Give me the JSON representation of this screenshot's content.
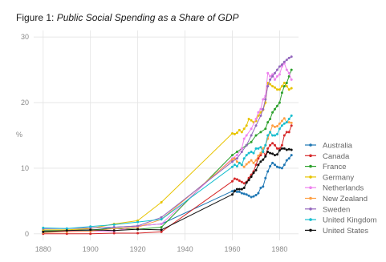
{
  "chart_data": {
    "type": "line",
    "title_prefix": "Figure 1:",
    "title_main": "Public Social Spending as a Share of GDP",
    "xlabel": "",
    "ylabel": "%",
    "xlim": [
      1876,
      1988
    ],
    "ylim": [
      -1,
      31
    ],
    "x_ticks": [
      1880,
      1900,
      1920,
      1940,
      1960,
      1980
    ],
    "y_ticks": [
      0,
      10,
      20,
      30
    ],
    "grid": true,
    "legend_position": "right",
    "series": [
      {
        "name": "Australia",
        "color": "#1f77b4",
        "points": [
          [
            1880,
            0.5
          ],
          [
            1890,
            0.5
          ],
          [
            1900,
            0.5
          ],
          [
            1910,
            1.0
          ],
          [
            1920,
            1.2
          ],
          [
            1930,
            1.5
          ],
          [
            1960,
            6.5
          ],
          [
            1961,
            6.6
          ],
          [
            1962,
            6.4
          ],
          [
            1963,
            6.4
          ],
          [
            1964,
            6.2
          ],
          [
            1965,
            6.1
          ],
          [
            1966,
            6.0
          ],
          [
            1967,
            5.8
          ],
          [
            1968,
            5.6
          ],
          [
            1969,
            5.7
          ],
          [
            1970,
            5.9
          ],
          [
            1971,
            6.2
          ],
          [
            1972,
            7.0
          ],
          [
            1973,
            7.2
          ],
          [
            1974,
            8.5
          ],
          [
            1975,
            9.5
          ],
          [
            1976,
            10.3
          ],
          [
            1977,
            10.8
          ],
          [
            1978,
            10.5
          ],
          [
            1979,
            10.2
          ],
          [
            1980,
            10.1
          ],
          [
            1981,
            10.0
          ],
          [
            1982,
            10.5
          ],
          [
            1983,
            11.2
          ],
          [
            1984,
            11.5
          ],
          [
            1985,
            12.0
          ]
        ]
      },
      {
        "name": "Canada",
        "color": "#d62728",
        "points": [
          [
            1880,
            0.0
          ],
          [
            1890,
            0.0
          ],
          [
            1900,
            0.0
          ],
          [
            1910,
            0.1
          ],
          [
            1920,
            0.1
          ],
          [
            1930,
            0.3
          ],
          [
            1960,
            8.0
          ],
          [
            1961,
            8.4
          ],
          [
            1962,
            8.3
          ],
          [
            1963,
            8.1
          ],
          [
            1964,
            7.9
          ],
          [
            1965,
            7.7
          ],
          [
            1966,
            7.9
          ],
          [
            1967,
            8.5
          ],
          [
            1968,
            9.0
          ],
          [
            1969,
            9.5
          ],
          [
            1970,
            10.5
          ],
          [
            1971,
            11.5
          ],
          [
            1972,
            12.0
          ],
          [
            1973,
            12.5
          ],
          [
            1974,
            12.0
          ],
          [
            1975,
            13.0
          ],
          [
            1976,
            13.5
          ],
          [
            1977,
            13.8
          ],
          [
            1978,
            13.5
          ],
          [
            1979,
            13.0
          ],
          [
            1980,
            13.0
          ],
          [
            1981,
            13.5
          ],
          [
            1982,
            15.0
          ],
          [
            1983,
            15.5
          ],
          [
            1984,
            15.5
          ],
          [
            1985,
            16.5
          ]
        ]
      },
      {
        "name": "France",
        "color": "#2ca02c",
        "points": [
          [
            1880,
            0.4
          ],
          [
            1890,
            0.5
          ],
          [
            1900,
            0.6
          ],
          [
            1910,
            0.8
          ],
          [
            1920,
            0.7
          ],
          [
            1930,
            1.0
          ],
          [
            1960,
            12.0
          ],
          [
            1962,
            12.5
          ],
          [
            1964,
            13.0
          ],
          [
            1966,
            13.5
          ],
          [
            1968,
            14.0
          ],
          [
            1970,
            15.0
          ],
          [
            1972,
            15.5
          ],
          [
            1974,
            16.0
          ],
          [
            1975,
            17.0
          ],
          [
            1976,
            17.5
          ],
          [
            1977,
            18.5
          ],
          [
            1978,
            19.0
          ],
          [
            1979,
            19.5
          ],
          [
            1980,
            20.0
          ],
          [
            1981,
            21.5
          ],
          [
            1982,
            22.5
          ],
          [
            1983,
            23.0
          ],
          [
            1984,
            24.0
          ],
          [
            1985,
            25.0
          ]
        ]
      },
      {
        "name": "Germany",
        "color": "#e8c400",
        "points": [
          [
            1880,
            0.6
          ],
          [
            1890,
            0.6
          ],
          [
            1900,
            0.8
          ],
          [
            1910,
            1.5
          ],
          [
            1920,
            2.0
          ],
          [
            1930,
            4.8
          ],
          [
            1960,
            15.3
          ],
          [
            1961,
            15.2
          ],
          [
            1962,
            15.4
          ],
          [
            1963,
            15.8
          ],
          [
            1964,
            15.5
          ],
          [
            1965,
            16.0
          ],
          [
            1966,
            16.5
          ],
          [
            1967,
            17.5
          ],
          [
            1968,
            17.3
          ],
          [
            1969,
            17.0
          ],
          [
            1970,
            17.2
          ],
          [
            1971,
            18.0
          ],
          [
            1972,
            18.5
          ],
          [
            1973,
            18.9
          ],
          [
            1974,
            20.0
          ],
          [
            1975,
            23.0
          ],
          [
            1976,
            22.8
          ],
          [
            1977,
            22.5
          ],
          [
            1978,
            22.3
          ],
          [
            1979,
            22.0
          ],
          [
            1980,
            22.0
          ],
          [
            1981,
            22.5
          ],
          [
            1982,
            23.0
          ],
          [
            1983,
            22.5
          ],
          [
            1984,
            22.0
          ],
          [
            1985,
            22.2
          ]
        ]
      },
      {
        "name": "Netherlands",
        "color": "#ee82ee",
        "points": [
          [
            1880,
            0.3
          ],
          [
            1890,
            0.4
          ],
          [
            1900,
            0.4
          ],
          [
            1910,
            0.4
          ],
          [
            1920,
            1.2
          ],
          [
            1930,
            1.5
          ],
          [
            1960,
            11.5
          ],
          [
            1962,
            12.0
          ],
          [
            1964,
            13.0
          ],
          [
            1965,
            14.5
          ],
          [
            1966,
            15.0
          ],
          [
            1968,
            16.0
          ],
          [
            1970,
            17.5
          ],
          [
            1971,
            18.5
          ],
          [
            1972,
            19.0
          ],
          [
            1973,
            20.5
          ],
          [
            1974,
            21.0
          ],
          [
            1975,
            24.5
          ],
          [
            1976,
            24.0
          ],
          [
            1977,
            24.3
          ],
          [
            1978,
            23.5
          ],
          [
            1979,
            24.0
          ],
          [
            1980,
            24.3
          ],
          [
            1981,
            25.5
          ],
          [
            1982,
            26.0
          ],
          [
            1983,
            25.0
          ],
          [
            1984,
            24.5
          ],
          [
            1985,
            23.5
          ]
        ]
      },
      {
        "name": "New Zealand",
        "color": "#ff9f43",
        "points": [
          [
            1880,
            0.2
          ],
          [
            1890,
            0.3
          ],
          [
            1900,
            0.4
          ],
          [
            1910,
            0.8
          ],
          [
            1920,
            1.0
          ],
          [
            1930,
            2.2
          ],
          [
            1960,
            11.3
          ],
          [
            1961,
            11.5
          ],
          [
            1962,
            11.0
          ],
          [
            1963,
            10.8
          ],
          [
            1964,
            10.5
          ],
          [
            1965,
            10.2
          ],
          [
            1966,
            10.6
          ],
          [
            1967,
            10.9
          ],
          [
            1968,
            11.2
          ],
          [
            1969,
            10.8
          ],
          [
            1970,
            11.2
          ],
          [
            1971,
            11.9
          ],
          [
            1972,
            12.3
          ],
          [
            1973,
            13.0
          ],
          [
            1974,
            13.5
          ],
          [
            1975,
            14.5
          ],
          [
            1976,
            15.5
          ],
          [
            1977,
            16.5
          ],
          [
            1978,
            16.3
          ],
          [
            1979,
            16.4
          ],
          [
            1980,
            16.8
          ],
          [
            1981,
            17.2
          ],
          [
            1982,
            17.6
          ],
          [
            1983,
            17.0
          ],
          [
            1984,
            17.0
          ],
          [
            1985,
            16.9
          ]
        ]
      },
      {
        "name": "Sweden",
        "color": "#9467bd",
        "points": [
          [
            1880,
            0.8
          ],
          [
            1890,
            0.8
          ],
          [
            1900,
            0.9
          ],
          [
            1910,
            1.0
          ],
          [
            1920,
            1.2
          ],
          [
            1930,
            2.5
          ],
          [
            1960,
            11.0
          ],
          [
            1962,
            11.5
          ],
          [
            1964,
            12.5
          ],
          [
            1966,
            13.5
          ],
          [
            1968,
            15.0
          ],
          [
            1970,
            16.5
          ],
          [
            1972,
            18.0
          ],
          [
            1973,
            19.0
          ],
          [
            1974,
            20.5
          ],
          [
            1975,
            22.5
          ],
          [
            1976,
            23.5
          ],
          [
            1977,
            24.0
          ],
          [
            1978,
            24.5
          ],
          [
            1979,
            25.0
          ],
          [
            1980,
            25.5
          ],
          [
            1981,
            25.8
          ],
          [
            1982,
            26.2
          ],
          [
            1983,
            26.5
          ],
          [
            1984,
            26.8
          ],
          [
            1985,
            27.0
          ]
        ]
      },
      {
        "name": "United Kingdom",
        "color": "#17becf",
        "points": [
          [
            1880,
            0.9
          ],
          [
            1890,
            0.8
          ],
          [
            1900,
            1.1
          ],
          [
            1910,
            1.4
          ],
          [
            1920,
            1.8
          ],
          [
            1930,
            2.2
          ],
          [
            1960,
            10.2
          ],
          [
            1961,
            10.5
          ],
          [
            1962,
            10.3
          ],
          [
            1963,
            10.8
          ],
          [
            1964,
            10.5
          ],
          [
            1965,
            11.5
          ],
          [
            1966,
            12.0
          ],
          [
            1967,
            12.3
          ],
          [
            1968,
            12.5
          ],
          [
            1969,
            12.3
          ],
          [
            1970,
            13.0
          ],
          [
            1971,
            13.0
          ],
          [
            1972,
            13.2
          ],
          [
            1973,
            12.5
          ],
          [
            1974,
            13.5
          ],
          [
            1975,
            15.0
          ],
          [
            1976,
            15.5
          ],
          [
            1977,
            15.0
          ],
          [
            1978,
            15.0
          ],
          [
            1979,
            15.2
          ],
          [
            1980,
            16.0
          ],
          [
            1981,
            16.5
          ],
          [
            1982,
            16.8
          ],
          [
            1983,
            17.0
          ],
          [
            1984,
            17.5
          ],
          [
            1985,
            18.0
          ]
        ]
      },
      {
        "name": "United States",
        "color": "#111111",
        "points": [
          [
            1880,
            0.3
          ],
          [
            1890,
            0.5
          ],
          [
            1900,
            0.6
          ],
          [
            1910,
            0.5
          ],
          [
            1920,
            0.7
          ],
          [
            1930,
            0.6
          ],
          [
            1960,
            6.0
          ],
          [
            1961,
            6.5
          ],
          [
            1962,
            6.8
          ],
          [
            1963,
            6.8
          ],
          [
            1964,
            6.8
          ],
          [
            1965,
            7.0
          ],
          [
            1966,
            7.8
          ],
          [
            1967,
            8.2
          ],
          [
            1968,
            8.7
          ],
          [
            1969,
            9.3
          ],
          [
            1970,
            9.7
          ],
          [
            1971,
            10.5
          ],
          [
            1972,
            11.0
          ],
          [
            1973,
            11.3
          ],
          [
            1974,
            11.8
          ],
          [
            1975,
            12.5
          ],
          [
            1976,
            12.3
          ],
          [
            1977,
            12.2
          ],
          [
            1978,
            12.0
          ],
          [
            1979,
            12.1
          ],
          [
            1980,
            12.7
          ],
          [
            1981,
            13.0
          ],
          [
            1982,
            13.0
          ],
          [
            1983,
            12.8
          ],
          [
            1984,
            12.9
          ],
          [
            1985,
            12.8
          ]
        ]
      }
    ]
  }
}
